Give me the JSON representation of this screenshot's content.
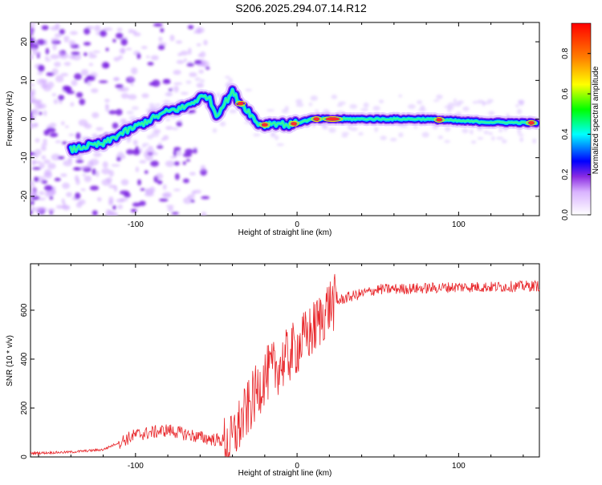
{
  "title": "S206.2025.294.07.14.R12",
  "chart_data": [
    {
      "type": "heatmap",
      "xlabel": "Height of straight line (km)",
      "ylabel": "Frequency (Hz)",
      "xlim": [
        -165,
        150
      ],
      "ylim": [
        -25,
        25
      ],
      "xticks": [
        -100,
        0,
        100
      ],
      "yticks": [
        -20,
        -10,
        0,
        10,
        20
      ],
      "grid": false,
      "colorbar": {
        "label": "Normalized spectral amplitude",
        "range": [
          0,
          0.95
        ],
        "ticks": [
          "0.0",
          "0.2",
          "0.4",
          "0.6",
          "0.8"
        ]
      },
      "ridge": {
        "x": [
          -140,
          -130,
          -120,
          -110,
          -100,
          -90,
          -80,
          -70,
          -60,
          -55,
          -50,
          -40,
          -35,
          -30,
          -25,
          -20,
          -15,
          -10,
          -5,
          0,
          5,
          10,
          20,
          30,
          40,
          60,
          80,
          100,
          120,
          148
        ],
        "y": [
          -8,
          -7,
          -6.5,
          -4,
          -2,
          0,
          2,
          3,
          5.5,
          6,
          1,
          7,
          4,
          2,
          -1,
          -1.5,
          -1,
          -1.2,
          -1.5,
          -1,
          -0.5,
          0,
          0,
          0,
          0,
          0,
          0,
          -0.5,
          -0.8,
          -1
        ]
      }
    },
    {
      "type": "line",
      "xlabel": "Height of straight line (km)",
      "ylabel": "SNR (10 * v/v)",
      "xlim": [
        -165,
        150
      ],
      "ylim": [
        0,
        790
      ],
      "xticks": [
        -100,
        0,
        100
      ],
      "yticks": [
        0,
        200,
        400,
        600
      ],
      "grid": false,
      "series": [
        {
          "color": "#e8262a",
          "envelope": {
            "x": [
              -165,
              -140,
              -120,
              -100,
              -80,
              -60,
              -45,
              -42,
              -38,
              -30,
              -20,
              -10,
              0,
              10,
              20,
              30,
              50,
              80,
              100,
              120,
              150
            ],
            "y": [
              15,
              20,
              30,
              90,
              110,
              80,
              65,
              40,
              100,
              200,
              330,
              380,
              450,
              520,
              620,
              650,
              685,
              690,
              695,
              695,
              700
            ]
          }
        }
      ]
    }
  ]
}
